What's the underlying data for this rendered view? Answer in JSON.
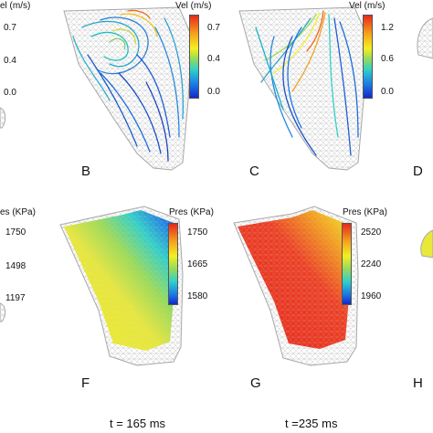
{
  "row1": {
    "partial_left": {
      "title": "el (m/s)",
      "ticks": [
        "0.7",
        "0.4",
        "0.0"
      ]
    },
    "B": {
      "cbar_title": "Vel (m/s)",
      "ticks": [
        "0.7",
        "0.4",
        "0.0"
      ],
      "letter": "B"
    },
    "C": {
      "cbar_title": "Vel (m/s)",
      "ticks": [
        "1.2",
        "0.6",
        "0.0"
      ],
      "letter": "C"
    },
    "D": {
      "letter": "D"
    }
  },
  "row2": {
    "partial_left": {
      "title": "es (KPa)",
      "ticks": [
        "1750",
        "1498",
        "1197"
      ]
    },
    "F": {
      "cbar_title": "Pres (KPa)",
      "ticks": [
        "1750",
        "1665",
        "1580"
      ],
      "letter": "F"
    },
    "G": {
      "cbar_title": "Pres (KPa)",
      "ticks": [
        "2520",
        "2240",
        "1960"
      ],
      "letter": "G"
    },
    "H": {
      "letter": "H"
    }
  },
  "times": [
    "t = 165 ms",
    "t =235 ms"
  ],
  "colors": {
    "high": "#e8271c",
    "mid": "#f4ef22",
    "low": "#1428c8",
    "mesh": "#b5b5b5"
  }
}
